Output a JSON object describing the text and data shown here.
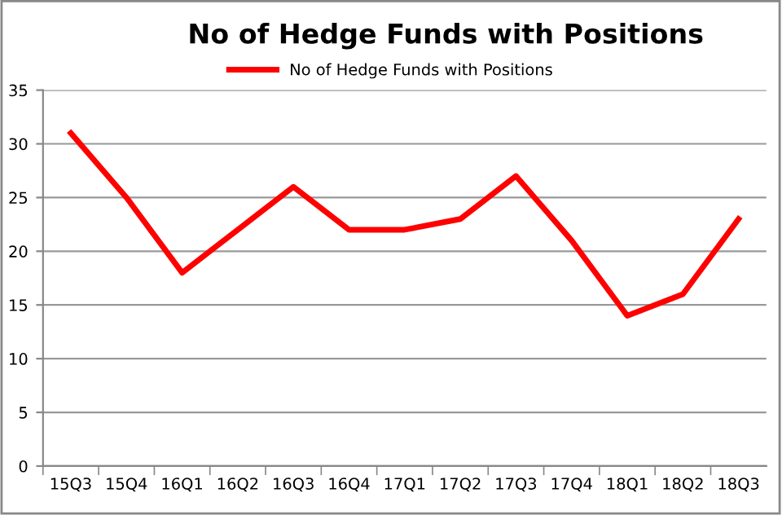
{
  "chart_data": {
    "type": "line",
    "title": "No of Hedge Funds with Positions",
    "categories": [
      "15Q3",
      "15Q4",
      "16Q1",
      "16Q2",
      "16Q3",
      "16Q4",
      "17Q1",
      "17Q2",
      "17Q3",
      "17Q4",
      "18Q1",
      "18Q2",
      "18Q3"
    ],
    "series": [
      {
        "name": "No of Hedge Funds with Positions",
        "color": "#ff0000",
        "values": [
          31,
          25,
          18,
          22,
          26,
          22,
          22,
          23,
          27,
          21,
          14,
          16,
          23
        ]
      }
    ],
    "ylim": [
      0,
      35
    ],
    "yticks": [
      0,
      5,
      10,
      15,
      20,
      25,
      30,
      35
    ],
    "grid": "y",
    "legend": "top",
    "marker": "none",
    "line_style": "solid"
  }
}
